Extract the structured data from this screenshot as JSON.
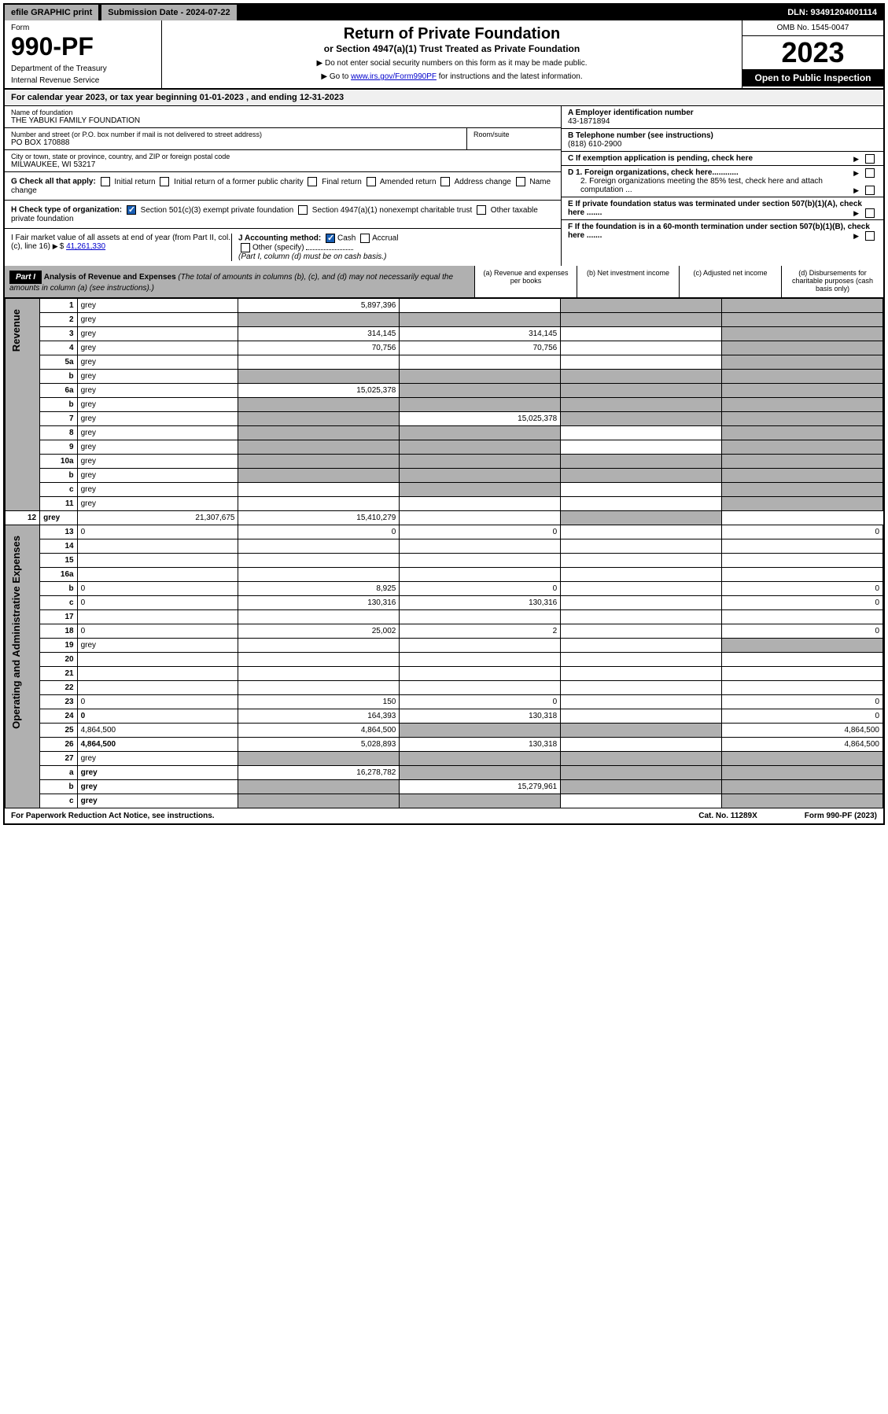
{
  "topbar": {
    "efile": "efile GRAPHIC print",
    "submission_label": "Submission Date - 2024-07-22",
    "dln": "DLN: 93491204001114"
  },
  "header": {
    "form_label": "Form",
    "form_number": "990-PF",
    "dept": "Department of the Treasury",
    "irs": "Internal Revenue Service",
    "title": "Return of Private Foundation",
    "subtitle": "or Section 4947(a)(1) Trust Treated as Private Foundation",
    "note1": "▶ Do not enter social security numbers on this form as it may be made public.",
    "note2_pre": "▶ Go to ",
    "note2_link": "www.irs.gov/Form990PF",
    "note2_post": " for instructions and the latest information.",
    "omb": "OMB No. 1545-0047",
    "year": "2023",
    "inspection": "Open to Public Inspection"
  },
  "calyear": {
    "text_pre": "For calendar year 2023, or tax year beginning ",
    "begin": "01-01-2023",
    "text_mid": " , and ending ",
    "end": "12-31-2023"
  },
  "id": {
    "name_label": "Name of foundation",
    "name": "THE YABUKI FAMILY FOUNDATION",
    "addr_label": "Number and street (or P.O. box number if mail is not delivered to street address)",
    "addr": "PO BOX 170888",
    "room_label": "Room/suite",
    "city_label": "City or town, state or province, country, and ZIP or foreign postal code",
    "city": "MILWAUKEE, WI  53217",
    "ein_label": "A Employer identification number",
    "ein": "43-1871894",
    "phone_label": "B Telephone number (see instructions)",
    "phone": "(818) 610-2900",
    "c_label": "C If exemption application is pending, check here",
    "d1": "D 1. Foreign organizations, check here............",
    "d2": "2. Foreign organizations meeting the 85% test, check here and attach computation ...",
    "e": "E  If private foundation status was terminated under section 507(b)(1)(A), check here .......",
    "f": "F  If the foundation is in a 60-month termination under section 507(b)(1)(B), check here .......",
    "g_label": "G Check all that apply:",
    "g_opts": [
      "Initial return",
      "Initial return of a former public charity",
      "Final return",
      "Amended return",
      "Address change",
      "Name change"
    ],
    "h_label": "H Check type of organization:",
    "h_opts": [
      "Section 501(c)(3) exempt private foundation",
      "Section 4947(a)(1) nonexempt charitable trust",
      "Other taxable private foundation"
    ],
    "i_label": "I Fair market value of all assets at end of year (from Part II, col. (c), line 16)",
    "i_val": "41,261,330",
    "j_label": "J Accounting method:",
    "j_opts": [
      "Cash",
      "Accrual"
    ],
    "j_other": "Other (specify)",
    "j_note": "(Part I, column (d) must be on cash basis.)"
  },
  "part1": {
    "label": "Part I",
    "title": "Analysis of Revenue and Expenses",
    "note": "(The total of amounts in columns (b), (c), and (d) may not necessarily equal the amounts in column (a) (see instructions).)",
    "cols": {
      "a": "(a)   Revenue and expenses per books",
      "b": "(b)   Net investment income",
      "c": "(c)   Adjusted net income",
      "d": "(d)   Disbursements for charitable purposes (cash basis only)"
    }
  },
  "sections": {
    "revenue": "Revenue",
    "expenses": "Operating and Administrative Expenses"
  },
  "rows": [
    {
      "n": "1",
      "d": "grey",
      "a": "5,897,396",
      "b": "",
      "c": "grey"
    },
    {
      "n": "2",
      "d": "grey",
      "a": "grey",
      "b": "grey",
      "c": "grey"
    },
    {
      "n": "3",
      "d": "grey",
      "a": "314,145",
      "b": "314,145",
      "c": ""
    },
    {
      "n": "4",
      "d": "grey",
      "a": "70,756",
      "b": "70,756",
      "c": ""
    },
    {
      "n": "5a",
      "d": "grey",
      "a": "",
      "b": "",
      "c": ""
    },
    {
      "n": "b",
      "d": "grey",
      "a": "grey",
      "b": "grey",
      "c": "grey"
    },
    {
      "n": "6a",
      "d": "grey",
      "a": "15,025,378",
      "b": "grey",
      "c": "grey"
    },
    {
      "n": "b",
      "d": "grey",
      "a": "grey",
      "b": "grey",
      "c": "grey"
    },
    {
      "n": "7",
      "d": "grey",
      "a": "grey",
      "b": "15,025,378",
      "c": "grey"
    },
    {
      "n": "8",
      "d": "grey",
      "a": "grey",
      "b": "grey",
      "c": ""
    },
    {
      "n": "9",
      "d": "grey",
      "a": "grey",
      "b": "grey",
      "c": ""
    },
    {
      "n": "10a",
      "d": "grey",
      "a": "grey",
      "b": "grey",
      "c": "grey"
    },
    {
      "n": "b",
      "d": "grey",
      "a": "grey",
      "b": "grey",
      "c": "grey"
    },
    {
      "n": "c",
      "d": "grey",
      "a": "",
      "b": "grey",
      "c": ""
    },
    {
      "n": "11",
      "d": "grey",
      "a": "",
      "b": "",
      "c": ""
    },
    {
      "n": "12",
      "d": "grey",
      "a": "21,307,675",
      "b": "15,410,279",
      "c": "",
      "bold": true
    }
  ],
  "exp_rows": [
    {
      "n": "13",
      "d": "0",
      "a": "0",
      "b": "0",
      "c": ""
    },
    {
      "n": "14",
      "d": "",
      "a": "",
      "b": "",
      "c": ""
    },
    {
      "n": "15",
      "d": "",
      "a": "",
      "b": "",
      "c": ""
    },
    {
      "n": "16a",
      "d": "",
      "a": "",
      "b": "",
      "c": ""
    },
    {
      "n": "b",
      "d": "0",
      "a": "8,925",
      "b": "0",
      "c": ""
    },
    {
      "n": "c",
      "d": "0",
      "a": "130,316",
      "b": "130,316",
      "c": ""
    },
    {
      "n": "17",
      "d": "",
      "a": "",
      "b": "",
      "c": ""
    },
    {
      "n": "18",
      "d": "0",
      "a": "25,002",
      "b": "2",
      "c": ""
    },
    {
      "n": "19",
      "d": "grey",
      "a": "",
      "b": "",
      "c": ""
    },
    {
      "n": "20",
      "d": "",
      "a": "",
      "b": "",
      "c": ""
    },
    {
      "n": "21",
      "d": "",
      "a": "",
      "b": "",
      "c": ""
    },
    {
      "n": "22",
      "d": "",
      "a": "",
      "b": "",
      "c": ""
    },
    {
      "n": "23",
      "d": "0",
      "a": "150",
      "b": "0",
      "c": ""
    },
    {
      "n": "24",
      "d": "0",
      "a": "164,393",
      "b": "130,318",
      "c": "",
      "bold": true
    },
    {
      "n": "25",
      "d": "4,864,500",
      "a": "4,864,500",
      "b": "grey",
      "c": "grey"
    },
    {
      "n": "26",
      "d": "4,864,500",
      "a": "5,028,893",
      "b": "130,318",
      "c": "",
      "bold": true
    },
    {
      "n": "27",
      "d": "grey",
      "a": "grey",
      "b": "grey",
      "c": "grey"
    },
    {
      "n": "a",
      "d": "grey",
      "a": "16,278,782",
      "b": "grey",
      "c": "grey",
      "bold": true
    },
    {
      "n": "b",
      "d": "grey",
      "a": "grey",
      "b": "15,279,961",
      "c": "grey",
      "bold": true
    },
    {
      "n": "c",
      "d": "grey",
      "a": "grey",
      "b": "grey",
      "c": "",
      "bold": true
    }
  ],
  "footer": {
    "left": "For Paperwork Reduction Act Notice, see instructions.",
    "mid": "Cat. No. 11289X",
    "right": "Form 990-PF (2023)"
  }
}
